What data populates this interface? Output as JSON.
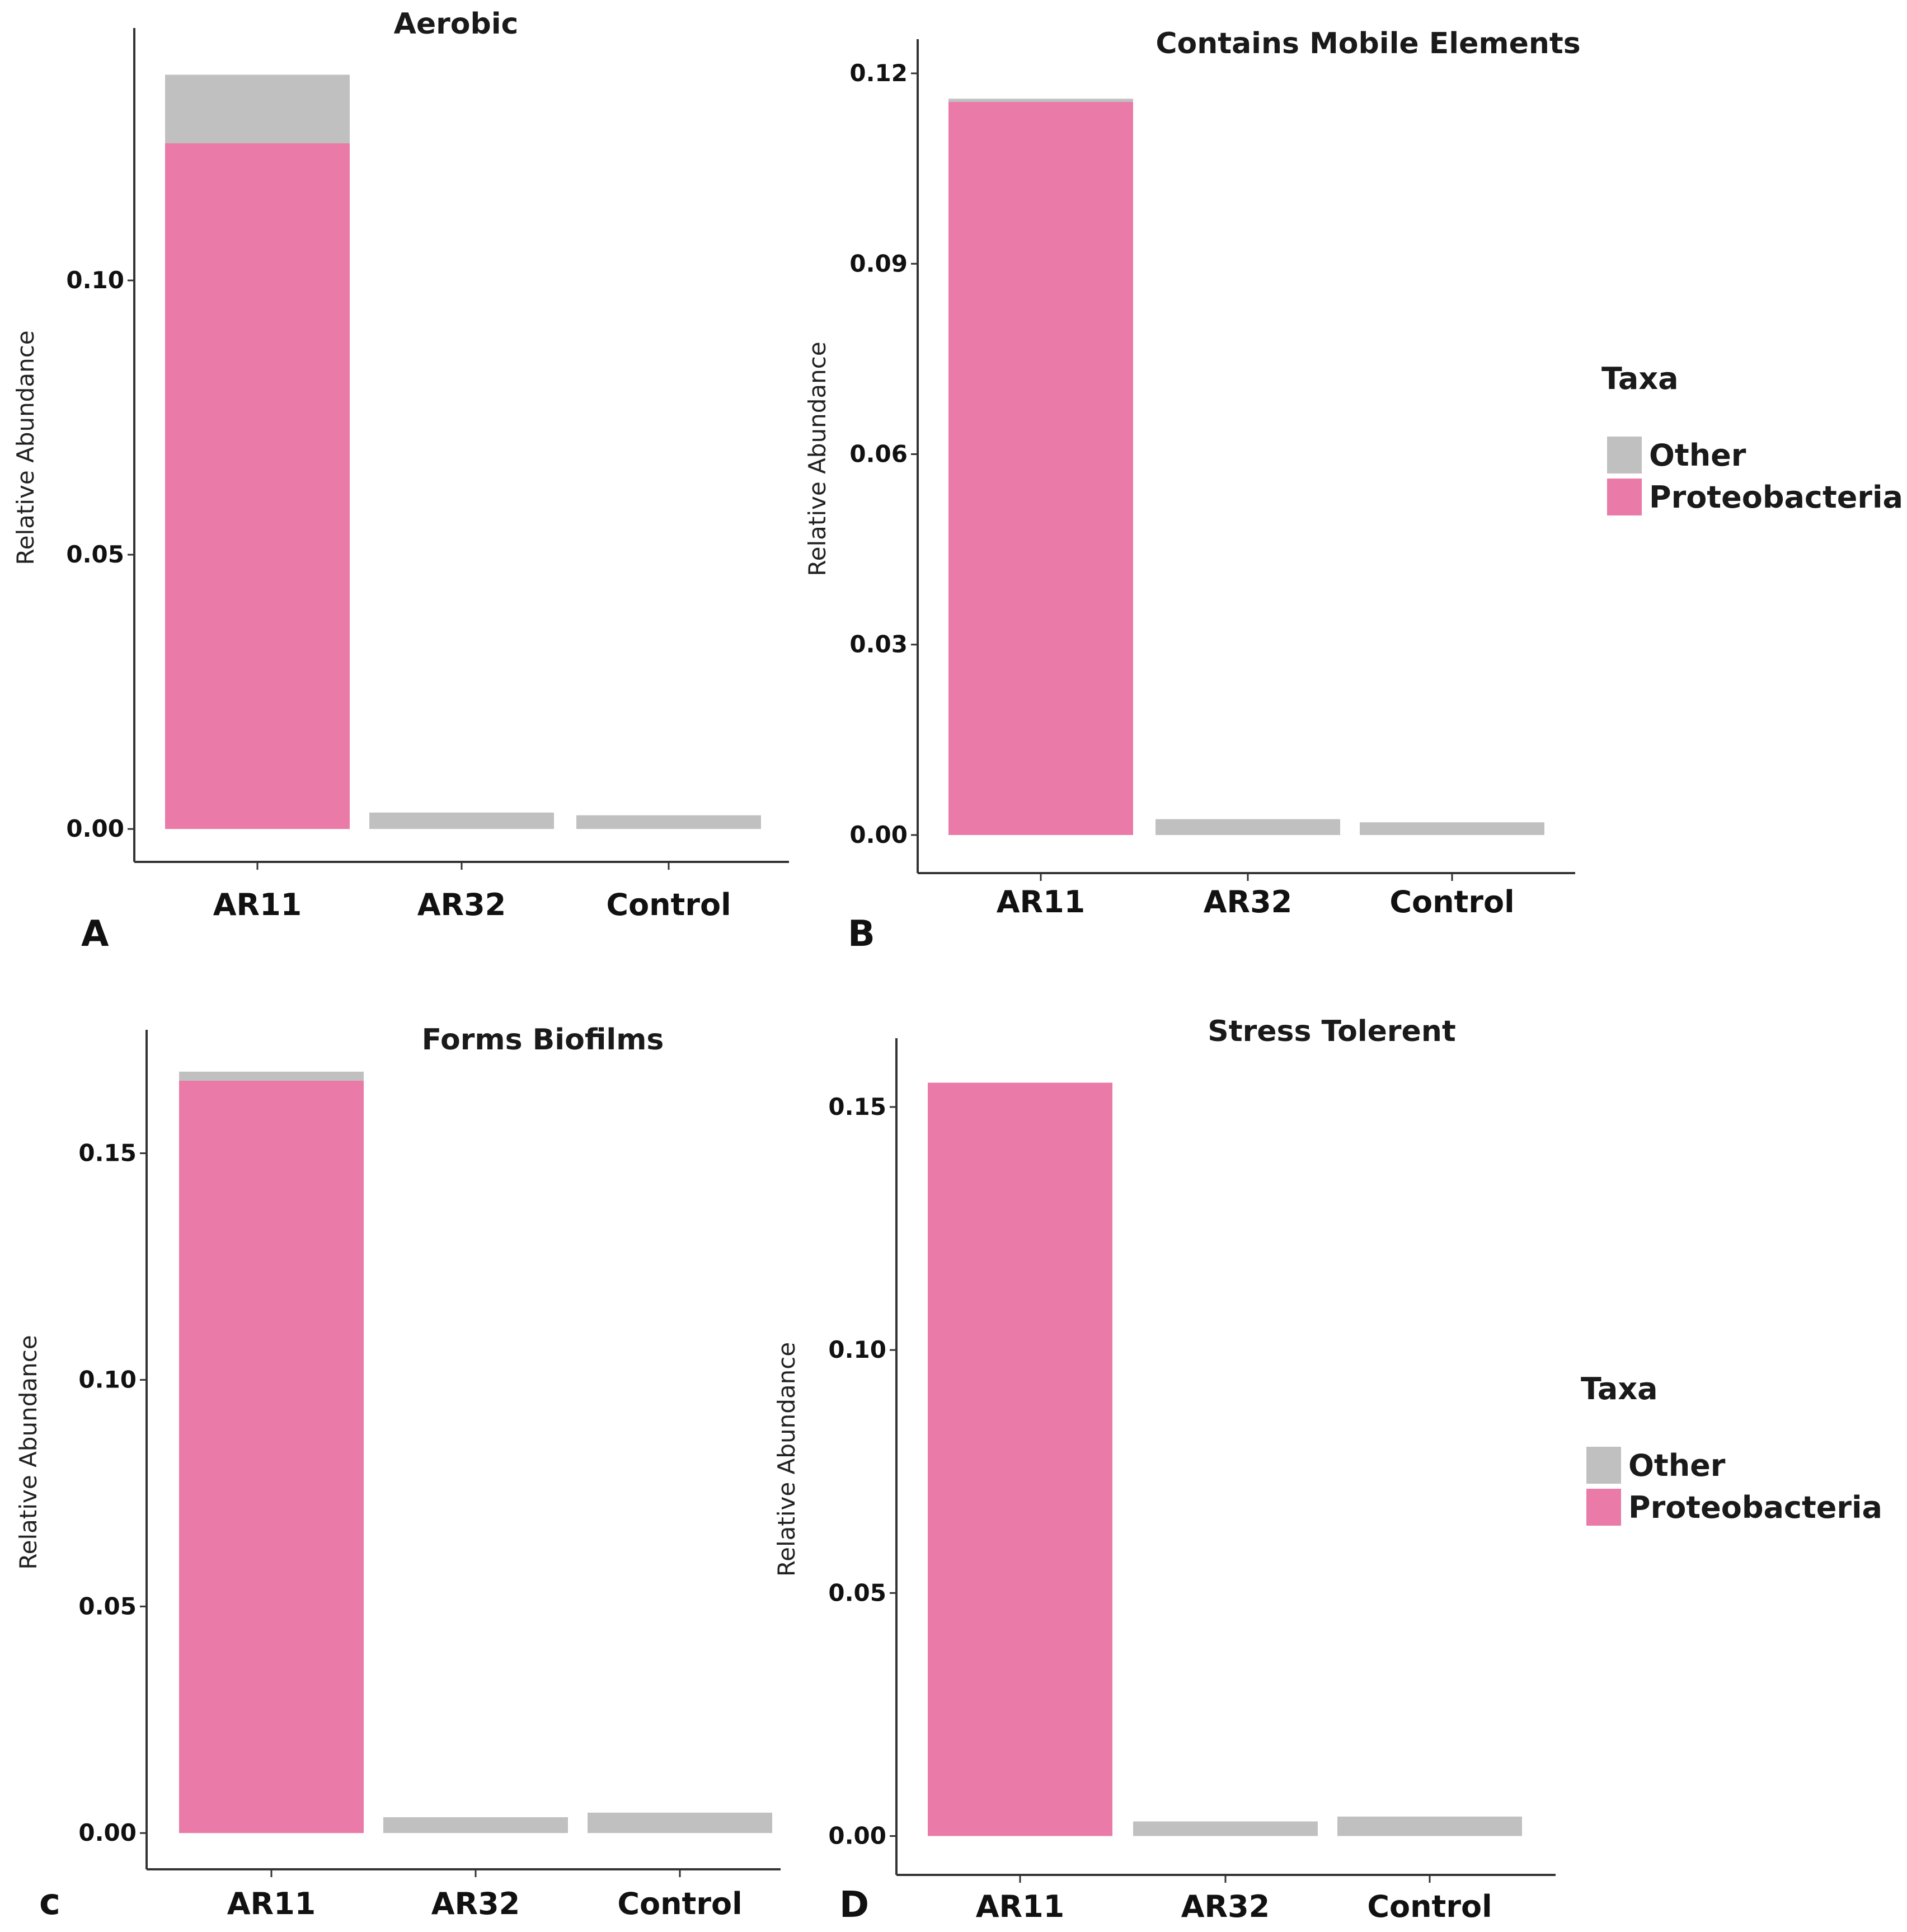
{
  "colors": {
    "Other": "#c0c0c0",
    "Proteobacteria": "#ea7aa8"
  },
  "legend_title": "Taxa",
  "panel_labels": [
    "A",
    "B",
    "c",
    "D"
  ],
  "chart_data": [
    {
      "type": "bar",
      "stacked": true,
      "title": "Aerobic",
      "ylabel": "Relative Abundance",
      "categories": [
        "AR11",
        "AR32",
        "Control"
      ],
      "series": [
        {
          "name": "Proteobacteria",
          "values": [
            0.125,
            0,
            0
          ]
        },
        {
          "name": "Other",
          "values": [
            0.0125,
            0.003,
            0.0025
          ]
        }
      ],
      "yticks": [
        "0.00",
        "0.05",
        "0.10"
      ],
      "ytick_values": [
        0,
        0.05,
        0.1
      ],
      "ylim": [
        -0.006,
        0.145
      ]
    },
    {
      "type": "bar",
      "stacked": true,
      "title": "Contains Mobile Elements",
      "ylabel": "Relative Abundance",
      "categories": [
        "AR11",
        "AR32",
        "Control"
      ],
      "series": [
        {
          "name": "Proteobacteria",
          "values": [
            0.1155,
            0,
            0
          ]
        },
        {
          "name": "Other",
          "values": [
            0.0005,
            0.0025,
            0.002
          ]
        }
      ],
      "yticks": [
        "0.00",
        "0.03",
        "0.06",
        "0.09",
        "0.12"
      ],
      "ytick_values": [
        0,
        0.03,
        0.06,
        0.09,
        0.12
      ],
      "ylim": [
        -0.006,
        0.1245
      ]
    },
    {
      "type": "bar",
      "stacked": true,
      "title": "Forms Biofilms",
      "ylabel": "Relative Abundance",
      "categories": [
        "AR11",
        "AR32",
        "Control"
      ],
      "series": [
        {
          "name": "Proteobacteria",
          "values": [
            0.166,
            0,
            0
          ]
        },
        {
          "name": "Other",
          "values": [
            0.002,
            0.0035,
            0.0045
          ]
        }
      ],
      "yticks": [
        "0.00",
        "0.05",
        "0.10",
        "0.15"
      ],
      "ytick_values": [
        0,
        0.05,
        0.1,
        0.15
      ],
      "ylim": [
        -0.008,
        0.176
      ]
    },
    {
      "type": "bar",
      "stacked": true,
      "title": "Stress Tolerent",
      "ylabel": "Relative Abundance",
      "categories": [
        "AR11",
        "AR32",
        "Control"
      ],
      "series": [
        {
          "name": "Proteobacteria",
          "values": [
            0.155,
            0,
            0
          ]
        },
        {
          "name": "Other",
          "values": [
            0,
            0.003,
            0.004
          ]
        }
      ],
      "yticks": [
        "0.00",
        "0.05",
        "0.10",
        "0.15"
      ],
      "ytick_values": [
        0,
        0.05,
        0.1,
        0.15
      ],
      "ylim": [
        -0.008,
        0.163
      ]
    }
  ],
  "legends": [
    {
      "title": "Taxa",
      "items": [
        "Other",
        "Proteobacteria"
      ]
    },
    {
      "title": "Taxa",
      "items": [
        "Other",
        "Proteobacteria"
      ]
    }
  ]
}
